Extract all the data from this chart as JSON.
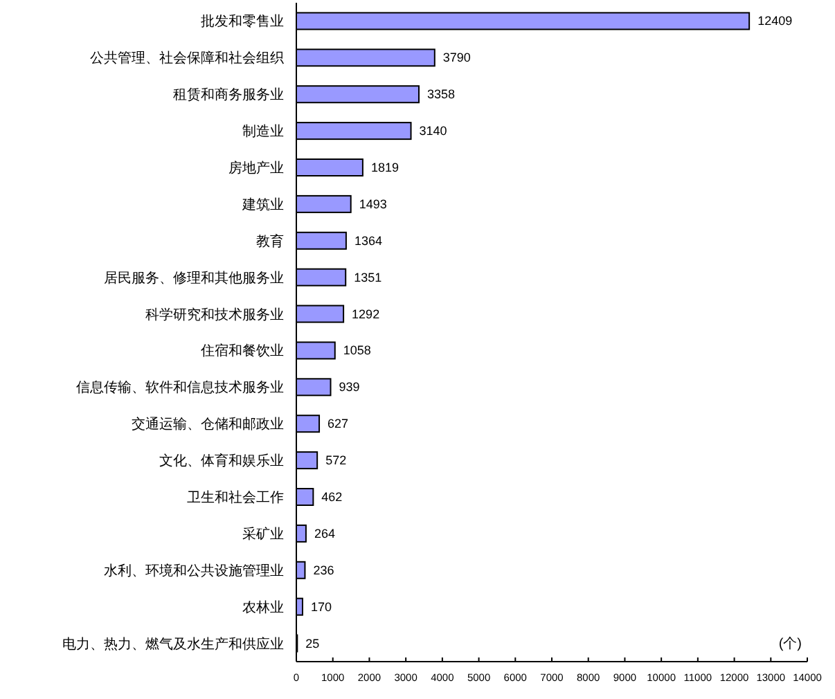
{
  "chart_data": {
    "type": "bar",
    "orientation": "horizontal",
    "categories": [
      "批发和零售业",
      "公共管理、社会保障和社会组织",
      "租赁和商务服务业",
      "制造业",
      "房地产业",
      "建筑业",
      "教育",
      "居民服务、修理和其他服务业",
      "科学研究和技术服务业",
      "住宿和餐饮业",
      "信息传输、软件和信息技术服务业",
      "交通运输、仓储和邮政业",
      "文化、体育和娱乐业",
      "卫生和社会工作",
      "采矿业",
      "水利、环境和公共设施管理业",
      "农林业",
      "电力、热力、燃气及水生产和供应业"
    ],
    "values": [
      12409,
      3790,
      3358,
      3140,
      1819,
      1493,
      1364,
      1351,
      1292,
      1058,
      939,
      627,
      572,
      462,
      264,
      236,
      170,
      25
    ],
    "color": "#9999ff",
    "xlim": [
      0,
      14000
    ],
    "xticks": [
      0,
      1000,
      2000,
      3000,
      4000,
      5000,
      6000,
      7000,
      8000,
      9000,
      10000,
      11000,
      12000,
      13000,
      14000
    ],
    "data_labels": true,
    "annotations": [
      "(个)"
    ]
  }
}
